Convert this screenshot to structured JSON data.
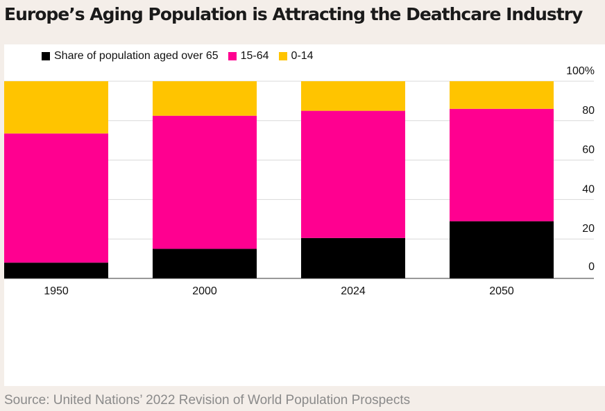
{
  "title": "Europe’s Aging Population is Attracting the Deathcare Industry",
  "source": "Source: United Nations’ 2022 Revision of World Population Prospects",
  "chart_data": {
    "type": "bar",
    "stacked": true,
    "categories": [
      "1950",
      "2000",
      "2024",
      "2050"
    ],
    "series": [
      {
        "name": "Share of population aged over 65",
        "color": "#000000",
        "values": [
          8,
          15,
          20.5,
          29
        ]
      },
      {
        "name": "15-64",
        "color": "#ff0090",
        "values": [
          65.5,
          67.5,
          64.5,
          57
        ]
      },
      {
        "name": "0-14",
        "color": "#ffc400",
        "values": [
          26.5,
          17.5,
          15,
          14
        ]
      }
    ],
    "ylim": [
      0,
      100
    ],
    "yticks": [
      "100%",
      "80",
      "60",
      "40",
      "20",
      "0"
    ],
    "ytick_values": [
      100,
      80,
      60,
      40,
      20,
      0
    ],
    "grid": true,
    "legend": "top-left",
    "yaxis_position": "right"
  }
}
